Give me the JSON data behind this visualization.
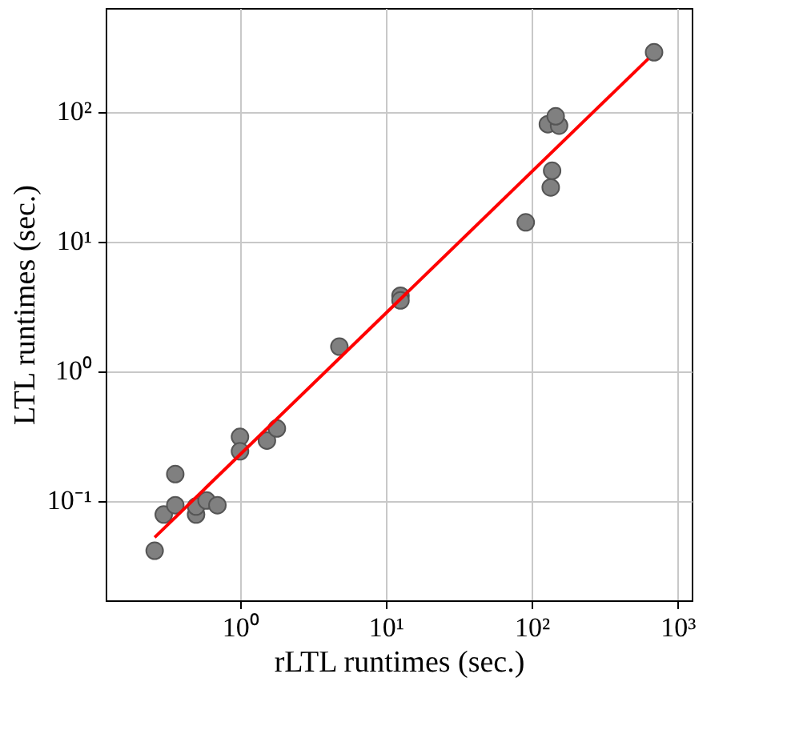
{
  "chart_data": {
    "type": "scatter",
    "xlabel": "rLTL runtimes (sec.)",
    "ylabel": "LTL runtimes (sec.)",
    "log": "xy",
    "grid": true,
    "xlim": [
      0.12,
      1250
    ],
    "ylim": [
      0.017,
      630
    ],
    "xticks": [
      {
        "value": 1,
        "label": "10⁰"
      },
      {
        "value": 10,
        "label": "10¹"
      },
      {
        "value": 100,
        "label": "10²"
      },
      {
        "value": 1000,
        "label": "10³"
      }
    ],
    "yticks": [
      {
        "value": 0.1,
        "label": "10⁻¹"
      },
      {
        "value": 1,
        "label": "10⁰"
      },
      {
        "value": 10,
        "label": "10¹"
      },
      {
        "value": 100,
        "label": "10²"
      }
    ],
    "series": [
      {
        "marker": "circle",
        "color": "#808080",
        "x": [
          0.26,
          0.3,
          0.36,
          0.36,
          0.5,
          0.5,
          0.59,
          0.7,
          1.0,
          1.0,
          1.53,
          1.79,
          4.8,
          12.6,
          12.6,
          91,
          135,
          138,
          129,
          154,
          146,
          690
        ],
        "values": [
          0.041,
          0.078,
          0.16,
          0.092,
          0.078,
          0.09,
          0.1,
          0.092,
          0.31,
          0.24,
          0.29,
          0.36,
          1.54,
          3.8,
          3.5,
          14,
          26,
          35,
          80,
          78,
          92,
          287
        ]
      },
      {
        "type": "line",
        "marker": "none",
        "color": "#ff0000",
        "x": [
          0.26,
          630
        ],
        "values": [
          0.052,
          256
        ]
      }
    ]
  }
}
